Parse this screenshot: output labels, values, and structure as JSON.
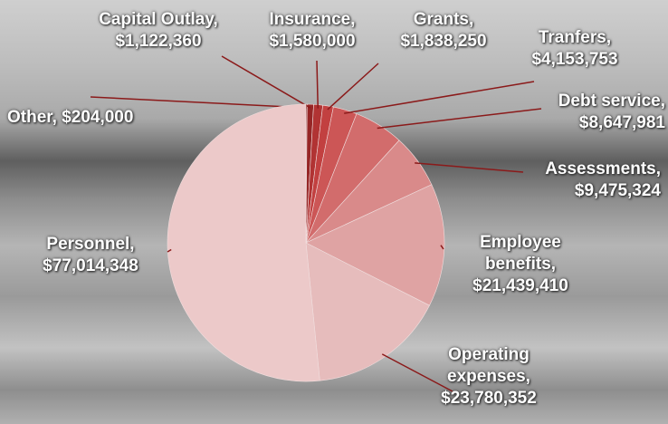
{
  "chart_data": {
    "type": "pie",
    "categories": [
      "Other,",
      "Capital Outlay,",
      "Insurance,",
      "Grants,",
      "Tranfers,",
      "Debt service,",
      "Assessments,",
      "Employee benefits,",
      "Operating expenses,",
      "Personnel,"
    ],
    "values": [
      204000,
      1122360,
      1580000,
      1838250,
      4153753,
      8647981,
      9475324,
      21439410,
      23780352,
      77014348
    ],
    "value_labels": [
      "$204,000",
      "$1,122,360",
      "$1,580,000",
      "$1,838,250",
      "$4,153,753",
      "$8,647,981",
      "$9,475,324",
      "$21,439,410",
      "$23,780,352",
      "$77,014,348"
    ],
    "colors": [
      "#7a1c1c",
      "#962626",
      "#b13333",
      "#c24040",
      "#cc5656",
      "#d26c6c",
      "#d98a8a",
      "#dfa3a3",
      "#e6bcbc",
      "#ecc9c9"
    ]
  }
}
